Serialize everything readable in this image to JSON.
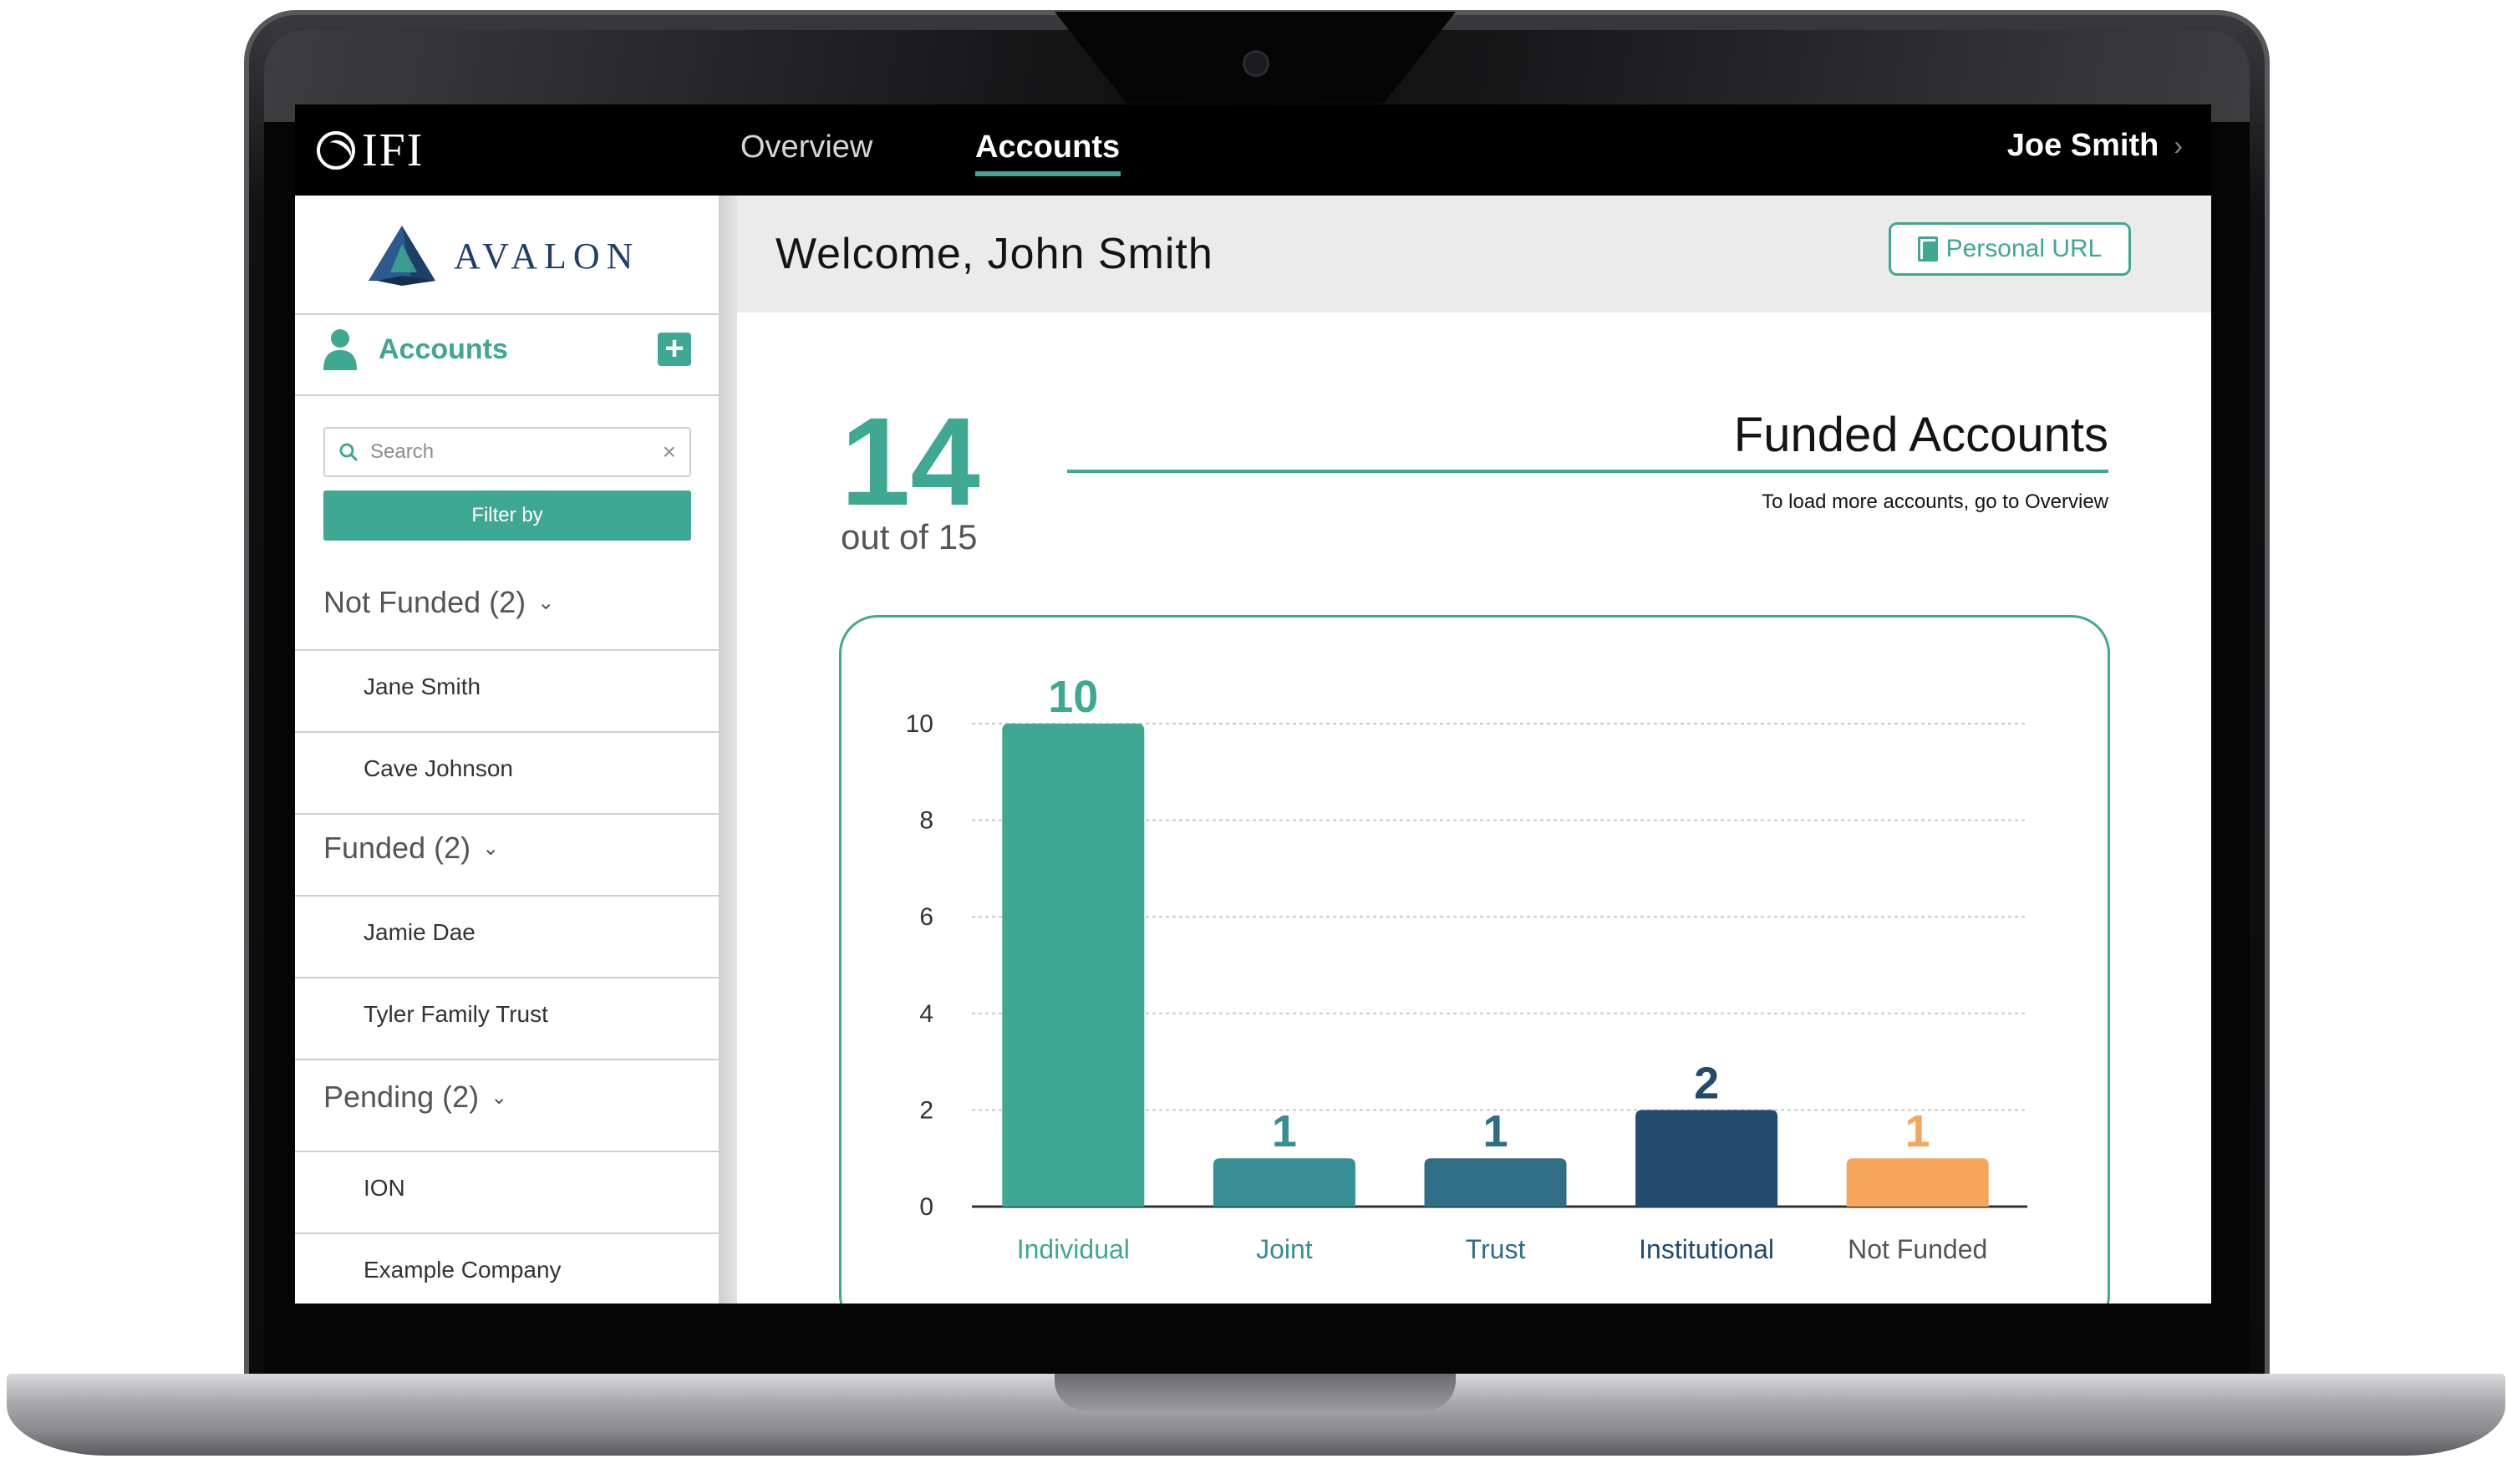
{
  "nav": {
    "brand": "IFI",
    "tabs": [
      {
        "label": "Overview",
        "active": false
      },
      {
        "label": "Accounts",
        "active": true
      }
    ],
    "user": "Joe Smith"
  },
  "sidebar": {
    "logo": "AVALON",
    "section_title": "Accounts",
    "search_placeholder": "Search",
    "filter_label": "Filter by",
    "groups": [
      {
        "label": "Not Funded (2)",
        "items": [
          "Jane Smith",
          "Cave Johnson"
        ]
      },
      {
        "label": "Funded (2)",
        "items": [
          "Jamie Dae",
          "Tyler Family Trust"
        ]
      },
      {
        "label": "Pending (2)",
        "items": [
          "ION",
          "Example Company"
        ]
      }
    ]
  },
  "main": {
    "welcome": "Welcome, John Smith",
    "personal_url_label": "Personal URL",
    "funded_count": "14",
    "funded_total": "out of 15",
    "funded_title": "Funded Accounts",
    "funded_note": "To load more accounts, go to Overview"
  },
  "colors": {
    "accent": "#3fa892",
    "navy": "#244a6e",
    "orange": "#f6a65a"
  },
  "chart_data": {
    "type": "bar",
    "categories": [
      "Individual",
      "Joint",
      "Trust",
      "Institutional",
      "Not Funded"
    ],
    "values": [
      10,
      1,
      1,
      2,
      1
    ],
    "colors": [
      "#3fa892",
      "#378f94",
      "#2f6e84",
      "#244a6e",
      "#f6a65a"
    ],
    "ylim": [
      0,
      10
    ],
    "yticks": [
      0,
      2,
      4,
      6,
      8,
      10
    ],
    "grid": true
  }
}
